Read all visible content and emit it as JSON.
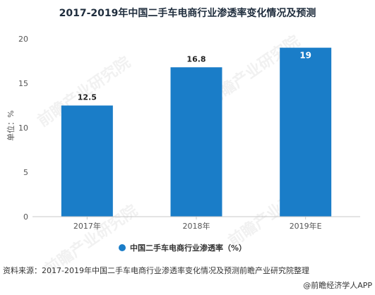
{
  "chart_data": {
    "type": "bar",
    "title": "2017-2019年中国二手车电商行业渗透率变化情况及预测",
    "ylabel": "单位：%",
    "xlabel": "",
    "categories": [
      "2017年",
      "2018年",
      "2019年E"
    ],
    "series": [
      {
        "name": "中国二手车电商行业渗透率（%）",
        "values": [
          12.5,
          16.8,
          19
        ],
        "labels": [
          "12.5",
          "16.8",
          "19"
        ],
        "color": "#1a7dc8"
      }
    ],
    "ylim": [
      0,
      20
    ],
    "yticks": [
      "0",
      "5",
      "10",
      "15",
      "20"
    ],
    "grid": false,
    "legend": "bottom"
  },
  "footer": {
    "source": "资料来源：2017-2019年中国二手车电商行业渗透率变化情况及预测前瞻产业研究院整理",
    "credit": "@前瞻经济学人APP"
  },
  "watermark": {
    "text": "前瞻产业研究院"
  },
  "colors": {
    "bar": "#1a7dc8",
    "axis": "#c8c8c8"
  }
}
